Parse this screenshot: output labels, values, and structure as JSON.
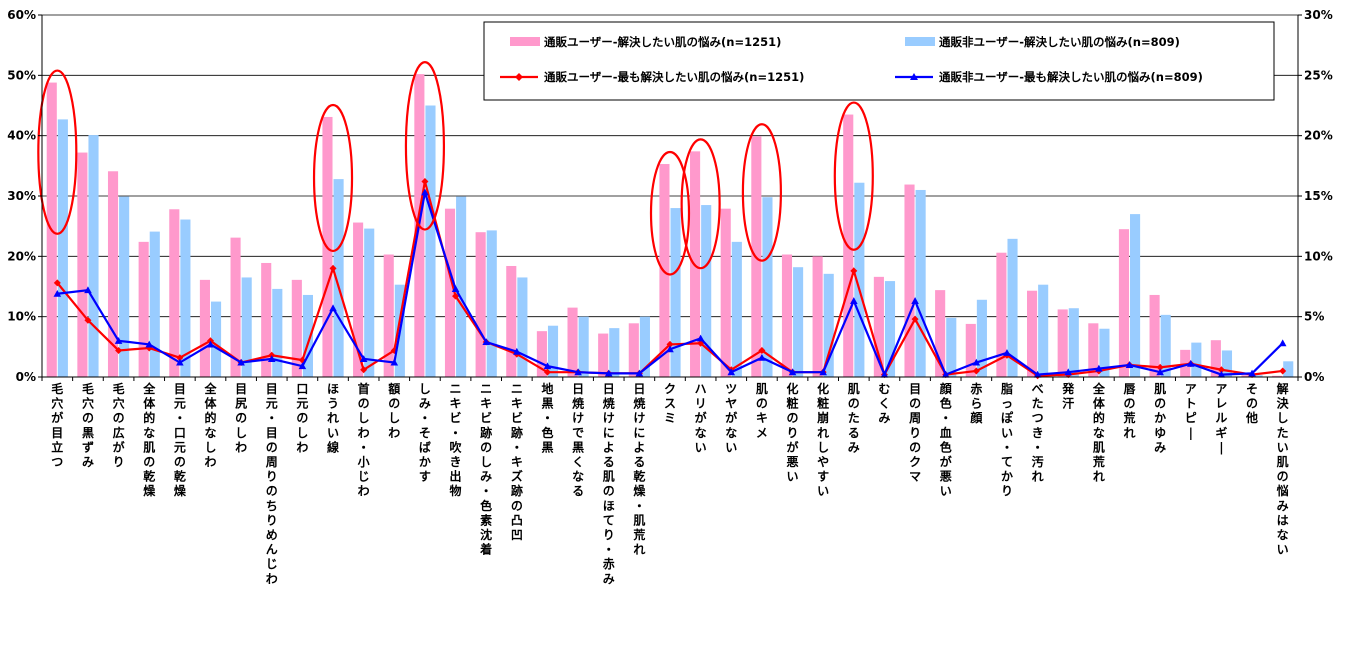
{
  "chart_data": {
    "type": "bar",
    "colors": {
      "user_all": "#ff99cc",
      "nonuser_all": "#99ccff",
      "user_top": "#ff0000",
      "nonuser_top": "#0000ff",
      "highlight": "#ff0000"
    },
    "y_left": {
      "ylim": [
        0,
        60
      ],
      "ticks": [
        "0%",
        "10%",
        "20%",
        "30%",
        "40%",
        "50%",
        "60%"
      ]
    },
    "y_right": {
      "ylim": [
        0,
        30
      ],
      "ticks": [
        "0%",
        "5%",
        "10%",
        "15%",
        "20%",
        "25%",
        "30%"
      ]
    },
    "grid": "horizontal",
    "legend_placement": "top-right",
    "categories": [
      "毛穴が目立つ",
      "毛穴の黒ずみ",
      "毛穴の広がり",
      "全体的な肌の乾燥",
      "目元・口元の乾燥",
      "全体的なしわ",
      "目尻のしわ",
      "目元・目の周りのちりめんじわ",
      "口元のしわ",
      "ほうれい線",
      "首のしわ・小じわ",
      "額のしわ",
      "しみ・そばかす",
      "ニキビ・吹き出物",
      "ニキビ跡のしみ・色素沈着",
      "ニキビ跡・キズ跡の凸凹",
      "地黒・色黒",
      "日焼けで黒くなる",
      "日焼けによる肌のほてり・赤み",
      "日焼けによる乾燥・肌荒れ",
      "クスミ",
      "ハリがない",
      "ツヤがない",
      "肌のキメ",
      "化粧のりが悪い",
      "化粧崩れしやすい",
      "肌のたるみ",
      "むくみ",
      "目の周りのクマ",
      "顔色・血色が悪い",
      "赤ら顔",
      "脂っぽい・てかり",
      "べたつき・汚れ",
      "発汗",
      "全体的な肌荒れ",
      "唇の荒れ",
      "肌のかゆみ",
      "アトピー",
      "アレルギー",
      "その他",
      "解決したい肌の悩みはない"
    ],
    "series": [
      {
        "name": "通販ユーザー-解決したい肌の悩み(n=1251)",
        "axis": "left",
        "kind": "bar",
        "values": [
          48.8,
          37.2,
          34.1,
          22.4,
          27.8,
          16.1,
          23.1,
          18.9,
          16.1,
          43.1,
          25.6,
          20.3,
          50.2,
          27.9,
          24.0,
          18.4,
          7.6,
          11.5,
          7.2,
          8.9,
          35.3,
          37.4,
          27.9,
          39.9,
          20.3,
          20.0,
          43.5,
          16.6,
          31.9,
          14.4,
          8.8,
          20.6,
          14.3,
          11.2,
          8.9,
          24.5,
          13.6,
          4.5,
          6.1,
          0.3,
          0.2
        ]
      },
      {
        "name": "通販非ユーザー-解決したい肌の悩み(n=809)",
        "axis": "left",
        "kind": "bar",
        "values": [
          42.7,
          40.1,
          29.9,
          24.1,
          26.1,
          12.5,
          16.5,
          14.6,
          13.6,
          32.8,
          24.6,
          15.3,
          45.0,
          29.9,
          24.3,
          16.5,
          8.5,
          10.0,
          8.1,
          10.0,
          28.0,
          28.5,
          22.4,
          29.8,
          18.2,
          17.1,
          32.2,
          15.9,
          31.0,
          9.8,
          12.8,
          22.9,
          15.3,
          11.4,
          8.0,
          27.0,
          10.3,
          5.7,
          4.4,
          0.3,
          2.6
        ]
      },
      {
        "name": "通販ユーザー-最も解決したい肌の悩み(n=1251)",
        "axis": "right",
        "kind": "line",
        "marker": "diamond",
        "values": [
          7.8,
          4.7,
          2.2,
          2.4,
          1.6,
          3.0,
          1.2,
          1.8,
          1.4,
          9.0,
          0.6,
          2.2,
          16.2,
          6.7,
          2.9,
          1.9,
          0.4,
          0.4,
          0.3,
          0.3,
          2.7,
          2.8,
          0.6,
          2.2,
          0.4,
          0.4,
          8.8,
          0.2,
          4.8,
          0.2,
          0.5,
          1.8,
          0.1,
          0.2,
          0.5,
          1.0,
          0.8,
          1.1,
          0.6,
          0.2,
          0.5
        ]
      },
      {
        "name": "通販非ユーザー-最も解決したい肌の悩み(n=809)",
        "axis": "right",
        "kind": "line",
        "marker": "triangle",
        "values": [
          6.9,
          7.2,
          3.0,
          2.7,
          1.2,
          2.7,
          1.2,
          1.5,
          0.9,
          5.7,
          1.5,
          1.2,
          15.3,
          7.3,
          2.9,
          2.1,
          0.9,
          0.4,
          0.3,
          0.3,
          2.3,
          3.2,
          0.4,
          1.6,
          0.4,
          0.4,
          6.3,
          0.2,
          6.3,
          0.2,
          1.2,
          2.0,
          0.2,
          0.4,
          0.7,
          1.0,
          0.4,
          1.1,
          0.2,
          0.3,
          2.8
        ]
      }
    ],
    "highlighted_categories": [
      0,
      9,
      12,
      20,
      21,
      23,
      26
    ]
  }
}
